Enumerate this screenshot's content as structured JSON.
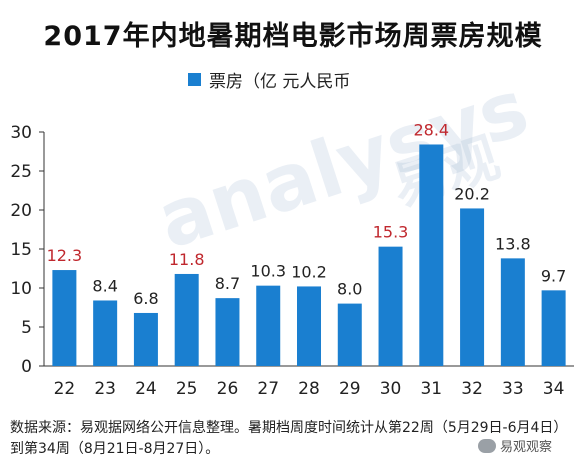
{
  "title": "2017年内地暑期档电影市场周票房规模",
  "legend": "票房（亿 元人民币",
  "footnote": "数据来源：易观据网络公开信息整理。暑期档周度时间统计从第22周（5月29日-6月4日）到第34周（8月21日-8月27日）。",
  "watermark": "analysys",
  "watermark_cn": "易观",
  "wechat": "易观观察",
  "colors": {
    "bar": "#1a7fd0",
    "label_default": "#222222",
    "label_highlight": "#c0282e",
    "axis": "#333333"
  },
  "chart_data": {
    "type": "bar",
    "categories": [
      "22",
      "23",
      "24",
      "25",
      "26",
      "27",
      "28",
      "29",
      "30",
      "31",
      "32",
      "33",
      "34"
    ],
    "values": [
      12.3,
      8.4,
      6.8,
      11.8,
      8.7,
      10.3,
      10.2,
      8.0,
      15.3,
      28.4,
      20.2,
      13.8,
      9.7
    ],
    "data_labels": [
      "12.3",
      "8.4",
      "6.8",
      "11.8",
      "8.7",
      "10.3",
      "10.2",
      "8.0",
      "15.3",
      "28.4",
      "20.2",
      "13.8",
      "9.7"
    ],
    "highlighted": [
      "22",
      "25",
      "30",
      "31"
    ],
    "ylim": [
      0,
      30
    ],
    "yticks": [
      "0",
      "5",
      "10",
      "15",
      "20",
      "25",
      "30"
    ],
    "series": [
      {
        "name": "票房（亿 元人民币",
        "values": [
          12.3,
          8.4,
          6.8,
          11.8,
          8.7,
          10.3,
          10.2,
          8.0,
          15.3,
          28.4,
          20.2,
          13.8,
          9.7
        ]
      }
    ],
    "legend_position": "top-center",
    "grid": false
  }
}
